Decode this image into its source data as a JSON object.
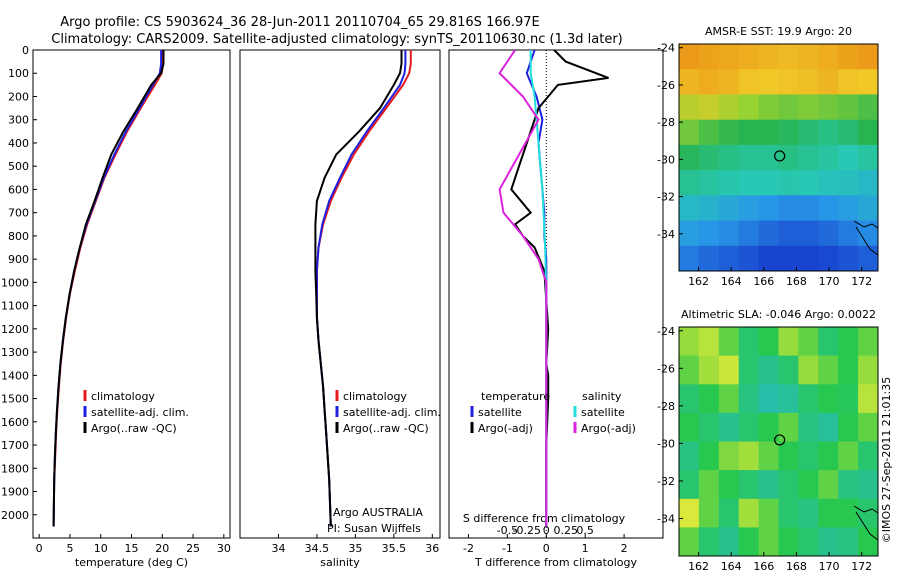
{
  "header": {
    "line1": "Argo profile: CS 5903624_36 28-Jun-2011 20110704_65 29.816S 166.97E",
    "line2": "Climatology: CARS2009. Satellite-adjusted climatology: synTS_20110630.nc (1.3d later)"
  },
  "colors": {
    "climatology": "#e41a1c",
    "satellite": "#1f1fe0",
    "argo": "#000000",
    "cyan": "#22dddd",
    "magenta": "#dd22dd"
  },
  "legend_profile": {
    "climatology": "climatology",
    "satellite": "satellite-adj. clim.",
    "argo": "Argo(..raw -QC)"
  },
  "legend_diff": {
    "temperature_heading": "temperature",
    "salinity_heading": "salinity",
    "satellite": "satellite",
    "argo": "Argo(-adj)"
  },
  "annotations": {
    "argo_country": "Argo AUSTRALIA",
    "pi": "PI: Susan Wijffels",
    "s_diff_label": "S difference from climatology",
    "watermark": "©IMOS 27-Sep-2011 21:01:35"
  },
  "maps": {
    "sst_title": "AMSR-E SST: 19.9 Argo: 20",
    "sla_title": "Altimetric SLA: -0.046 Argo: 0.0022",
    "x_ticks": [
      "162",
      "164",
      "166",
      "168",
      "170",
      "172"
    ],
    "y_ticks": [
      "-24",
      "-26",
      "-28",
      "-30",
      "-32",
      "-34"
    ],
    "sst_levels": [
      [
        0.95,
        0.92,
        0.9,
        0.88,
        0.85,
        0.83,
        0.85,
        0.88,
        0.92,
        0.95
      ],
      [
        0.85,
        0.88,
        0.85,
        0.8,
        0.78,
        0.8,
        0.82,
        0.85,
        0.8,
        0.78
      ],
      [
        0.7,
        0.72,
        0.68,
        0.65,
        0.62,
        0.6,
        0.62,
        0.6,
        0.58,
        0.55
      ],
      [
        0.6,
        0.55,
        0.52,
        0.5,
        0.5,
        0.48,
        0.45,
        0.42,
        0.45,
        0.5
      ],
      [
        0.48,
        0.45,
        0.42,
        0.4,
        0.4,
        0.42,
        0.4,
        0.38,
        0.35,
        0.38
      ],
      [
        0.4,
        0.38,
        0.36,
        0.35,
        0.35,
        0.36,
        0.35,
        0.33,
        0.32,
        0.3
      ],
      [
        0.3,
        0.28,
        0.25,
        0.22,
        0.2,
        0.18,
        0.18,
        0.2,
        0.22,
        0.25
      ],
      [
        0.22,
        0.2,
        0.18,
        0.15,
        0.12,
        0.1,
        0.1,
        0.12,
        0.15,
        0.18
      ],
      [
        0.15,
        0.12,
        0.1,
        0.08,
        0.05,
        0.05,
        0.05,
        0.06,
        0.08,
        0.1
      ]
    ],
    "sla_levels": [
      [
        0.6,
        0.65,
        0.55,
        0.45,
        0.5,
        0.6,
        0.55,
        0.45,
        0.5,
        0.55
      ],
      [
        0.55,
        0.62,
        0.68,
        0.45,
        0.4,
        0.45,
        0.6,
        0.55,
        0.5,
        0.6
      ],
      [
        0.45,
        0.5,
        0.55,
        0.42,
        0.35,
        0.38,
        0.45,
        0.5,
        0.48,
        0.65
      ],
      [
        0.5,
        0.45,
        0.4,
        0.45,
        0.5,
        0.55,
        0.42,
        0.38,
        0.5,
        0.55
      ],
      [
        0.42,
        0.5,
        0.58,
        0.62,
        0.55,
        0.5,
        0.45,
        0.5,
        0.55,
        0.45
      ],
      [
        0.45,
        0.55,
        0.5,
        0.45,
        0.4,
        0.45,
        0.5,
        0.55,
        0.42,
        0.4
      ],
      [
        0.7,
        0.55,
        0.45,
        0.62,
        0.55,
        0.45,
        0.42,
        0.5,
        0.5,
        0.45
      ],
      [
        0.55,
        0.45,
        0.4,
        0.5,
        0.55,
        0.5,
        0.45,
        0.4,
        0.42,
        0.5
      ]
    ]
  },
  "chart_data": [
    {
      "type": "line",
      "title": "",
      "xlabel": "temperature (deg C)",
      "ylabel": "",
      "xlim": [
        -1,
        31
      ],
      "ylim": [
        2100,
        0
      ],
      "x_ticks": [
        0,
        5,
        10,
        15,
        20,
        25,
        30
      ],
      "y_ticks": [
        0,
        100,
        200,
        300,
        400,
        500,
        600,
        700,
        800,
        900,
        1000,
        1100,
        1200,
        1300,
        1400,
        1500,
        1600,
        1700,
        1800,
        1900,
        2000
      ],
      "grid": false,
      "legend": "lower-center",
      "series": [
        {
          "key": "climatology",
          "x": [
            20.1,
            20.1,
            19.9,
            18.8,
            16.5,
            14.3,
            12.4,
            10.6,
            9.2,
            7.8,
            6.7,
            5.8,
            5.0,
            4.4,
            3.9,
            3.5,
            3.2,
            2.95,
            2.75,
            2.6,
            2.45,
            2.35
          ],
          "y": [
            0,
            60,
            100,
            150,
            250,
            350,
            450,
            550,
            650,
            750,
            850,
            950,
            1050,
            1150,
            1250,
            1350,
            1450,
            1550,
            1650,
            1750,
            1850,
            2050
          ]
        },
        {
          "key": "satellite",
          "x": [
            19.8,
            19.8,
            19.6,
            18.5,
            16.3,
            14.1,
            12.2,
            10.5,
            9.1,
            7.7,
            6.6,
            5.7,
            4.95,
            4.35,
            3.85,
            3.45,
            3.15,
            2.9,
            2.7,
            2.55,
            2.45,
            2.35
          ],
          "y": [
            0,
            60,
            100,
            150,
            250,
            350,
            450,
            550,
            650,
            750,
            850,
            950,
            1050,
            1150,
            1250,
            1350,
            1450,
            1550,
            1650,
            1750,
            1850,
            2050
          ]
        },
        {
          "key": "argo",
          "x": [
            20.2,
            20.2,
            19.8,
            18.2,
            16.0,
            13.7,
            11.7,
            10.3,
            9.0,
            7.6,
            6.6,
            5.7,
            4.95,
            4.35,
            3.85,
            3.45,
            3.15,
            2.9,
            2.7,
            2.55,
            2.45,
            2.35
          ],
          "y": [
            0,
            60,
            100,
            150,
            250,
            350,
            450,
            550,
            650,
            750,
            850,
            950,
            1050,
            1150,
            1250,
            1350,
            1450,
            1550,
            1650,
            1750,
            1850,
            2050
          ]
        }
      ]
    },
    {
      "type": "line",
      "title": "",
      "xlabel": "salinity",
      "ylabel": "",
      "xlim": [
        33.5,
        36.1
      ],
      "ylim": [
        2100,
        0
      ],
      "x_ticks": [
        34,
        34.5,
        35,
        35.5,
        36
      ],
      "grid": false,
      "legend": "lower-right",
      "series": [
        {
          "key": "climatology",
          "x": [
            35.72,
            35.72,
            35.7,
            35.62,
            35.4,
            35.18,
            34.98,
            34.82,
            34.68,
            34.58,
            34.52,
            34.5,
            34.5,
            34.5,
            34.52,
            34.55,
            34.58,
            34.6,
            34.62,
            34.64,
            34.66,
            34.68
          ],
          "y": [
            0,
            60,
            100,
            150,
            250,
            350,
            450,
            550,
            650,
            750,
            850,
            950,
            1050,
            1150,
            1250,
            1350,
            1450,
            1550,
            1650,
            1750,
            1850,
            2050
          ]
        },
        {
          "key": "satellite",
          "x": [
            35.65,
            35.65,
            35.64,
            35.58,
            35.37,
            35.15,
            34.95,
            34.8,
            34.66,
            34.57,
            34.52,
            34.5,
            34.5,
            34.5,
            34.52,
            34.55,
            34.58,
            34.6,
            34.62,
            34.64,
            34.66,
            34.68
          ],
          "y": [
            0,
            60,
            100,
            150,
            250,
            350,
            450,
            550,
            650,
            750,
            850,
            950,
            1050,
            1150,
            1250,
            1350,
            1450,
            1550,
            1650,
            1750,
            1850,
            2050
          ]
        },
        {
          "key": "argo",
          "x": [
            35.6,
            35.6,
            35.58,
            35.5,
            35.32,
            35.05,
            34.75,
            34.6,
            34.5,
            34.48,
            34.48,
            34.48,
            34.49,
            34.5,
            34.52,
            34.55,
            34.58,
            34.6,
            34.62,
            34.64,
            34.66,
            34.68
          ],
          "y": [
            0,
            60,
            100,
            150,
            250,
            350,
            450,
            550,
            650,
            750,
            850,
            950,
            1050,
            1150,
            1250,
            1350,
            1450,
            1550,
            1650,
            1750,
            1850,
            2050
          ]
        }
      ]
    },
    {
      "type": "line",
      "title": "",
      "xlabel": "T difference from climatology",
      "x2label": "S difference from climatology",
      "ylabel": "",
      "xlim": [
        -2.5,
        3
      ],
      "ylim": [
        2100,
        0
      ],
      "x_ticks": [
        -2,
        -1,
        0,
        1,
        2
      ],
      "x2_ticks": [
        -0.5,
        -0.25,
        0,
        0.25,
        0.5
      ],
      "grid": false,
      "legend": "lower-center",
      "series": [
        {
          "key": "t_satellite",
          "x": [
            -0.3,
            -0.5,
            -0.25,
            -0.1,
            -0.2,
            -0.15,
            -0.1,
            -0.05,
            -0.05,
            0,
            0,
            0,
            0,
            0,
            0,
            0,
            0,
            0,
            0
          ],
          "y": [
            0,
            100,
            200,
            300,
            400,
            500,
            600,
            700,
            800,
            900,
            1000,
            1100,
            1200,
            1400,
            1500,
            1600,
            1800,
            1900,
            2050
          ]
        },
        {
          "key": "t_argo",
          "x": [
            0.2,
            0.5,
            1.6,
            0.3,
            -0.2,
            -0.5,
            -0.7,
            -0.9,
            -0.4,
            -0.8,
            -0.6,
            -0.3,
            -0.05,
            0.05,
            0,
            0.05,
            0.05,
            0,
            0
          ],
          "y": [
            0,
            50,
            120,
            150,
            250,
            400,
            500,
            600,
            700,
            750,
            800,
            850,
            950,
            1200,
            1350,
            1400,
            1500,
            1700,
            2050
          ]
        },
        {
          "key": "s_satellite",
          "x": [
            -0.2,
            -0.2,
            -0.15,
            -0.1,
            -0.05,
            -0.02,
            -0.01,
            0,
            0,
            0,
            0,
            0,
            0
          ],
          "y": [
            0,
            100,
            200,
            400,
            600,
            800,
            900,
            1100,
            1300,
            1500,
            1700,
            1900,
            2050
          ]
        },
        {
          "key": "s_argo",
          "x": [
            -0.4,
            -0.6,
            -0.3,
            -0.1,
            -0.35,
            -0.6,
            -0.55,
            -0.3,
            -0.1,
            0,
            0,
            0,
            0
          ],
          "y": [
            0,
            100,
            200,
            300,
            450,
            600,
            700,
            800,
            900,
            1000,
            1300,
            1700,
            2050
          ]
        }
      ]
    }
  ]
}
